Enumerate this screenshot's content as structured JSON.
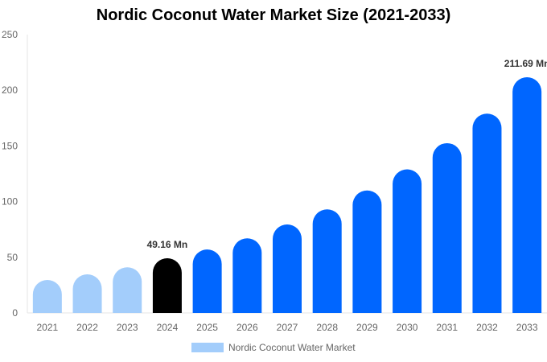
{
  "chart_data": {
    "type": "bar",
    "title": "Nordic Coconut Water Market Size (2021-2033)",
    "categories": [
      "2021",
      "2022",
      "2023",
      "2024",
      "2025",
      "2026",
      "2027",
      "2028",
      "2029",
      "2030",
      "2031",
      "2032",
      "2033"
    ],
    "series": [
      {
        "name": "Nordic Coconut Water Market",
        "values": [
          29.6,
          34.7,
          41.0,
          49.16,
          57.0,
          67.0,
          79.5,
          93.0,
          110.0,
          129.0,
          152.5,
          179.0,
          211.69
        ]
      }
    ],
    "data_labels": {
      "3": "49.16 Mn",
      "12": "211.69 Mn"
    },
    "ylim": [
      0,
      250
    ],
    "yticks": [
      0,
      50,
      100,
      150,
      200,
      250
    ],
    "grid": false,
    "legend": "bottom",
    "colors": {
      "historical": "#a3cdfb",
      "current": "#000000",
      "forecast": "#0066ff"
    },
    "color_groups": [
      "historical",
      "historical",
      "historical",
      "current",
      "forecast",
      "forecast",
      "forecast",
      "forecast",
      "forecast",
      "forecast",
      "forecast",
      "forecast",
      "forecast"
    ]
  }
}
